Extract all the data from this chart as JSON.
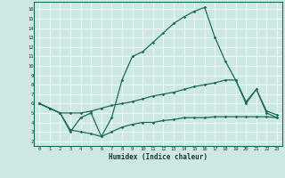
{
  "xlabel": "Humidex (Indice chaleur)",
  "bg_color": "#cde8e4",
  "line_color": "#1a6b5a",
  "grid_color": "#ffffff",
  "xlim": [
    -0.5,
    23.5
  ],
  "ylim": [
    1.5,
    16.8
  ],
  "yticks": [
    2,
    3,
    4,
    5,
    6,
    7,
    8,
    9,
    10,
    11,
    12,
    13,
    14,
    15,
    16
  ],
  "xticks": [
    0,
    1,
    2,
    3,
    4,
    5,
    6,
    7,
    8,
    9,
    10,
    11,
    12,
    13,
    14,
    15,
    16,
    17,
    18,
    19,
    20,
    21,
    22,
    23
  ],
  "line1_x": [
    0,
    1,
    2,
    3,
    4,
    5,
    6,
    7,
    8,
    9,
    10,
    11,
    12,
    13,
    14,
    15,
    16,
    17,
    18,
    19,
    20,
    21,
    22,
    23
  ],
  "line1_y": [
    6.0,
    5.5,
    5.0,
    3.0,
    4.5,
    5.0,
    2.5,
    4.5,
    8.5,
    11.0,
    11.5,
    12.5,
    13.5,
    14.5,
    15.2,
    15.8,
    16.2,
    13.0,
    10.5,
    8.5,
    6.0,
    7.5,
    5.0,
    4.5
  ],
  "line2_x": [
    0,
    1,
    2,
    3,
    4,
    5,
    6,
    7,
    8,
    9,
    10,
    11,
    12,
    13,
    14,
    15,
    16,
    17,
    18,
    19,
    20,
    21,
    22,
    23
  ],
  "line2_y": [
    6.0,
    5.5,
    5.0,
    5.0,
    5.0,
    5.2,
    5.5,
    5.8,
    6.0,
    6.2,
    6.5,
    6.8,
    7.0,
    7.2,
    7.5,
    7.8,
    8.0,
    8.2,
    8.5,
    8.5,
    6.2,
    7.5,
    5.2,
    4.8
  ],
  "line3_x": [
    0,
    2,
    3,
    4,
    5,
    6,
    7,
    8,
    9,
    10,
    11,
    12,
    13,
    14,
    15,
    16,
    17,
    18,
    19,
    20,
    21,
    22,
    23
  ],
  "line3_y": [
    6.0,
    5.0,
    3.2,
    3.0,
    2.8,
    2.5,
    3.0,
    3.5,
    3.8,
    4.0,
    4.0,
    4.2,
    4.3,
    4.5,
    4.5,
    4.5,
    4.6,
    4.6,
    4.6,
    4.6,
    4.6,
    4.6,
    4.5
  ]
}
